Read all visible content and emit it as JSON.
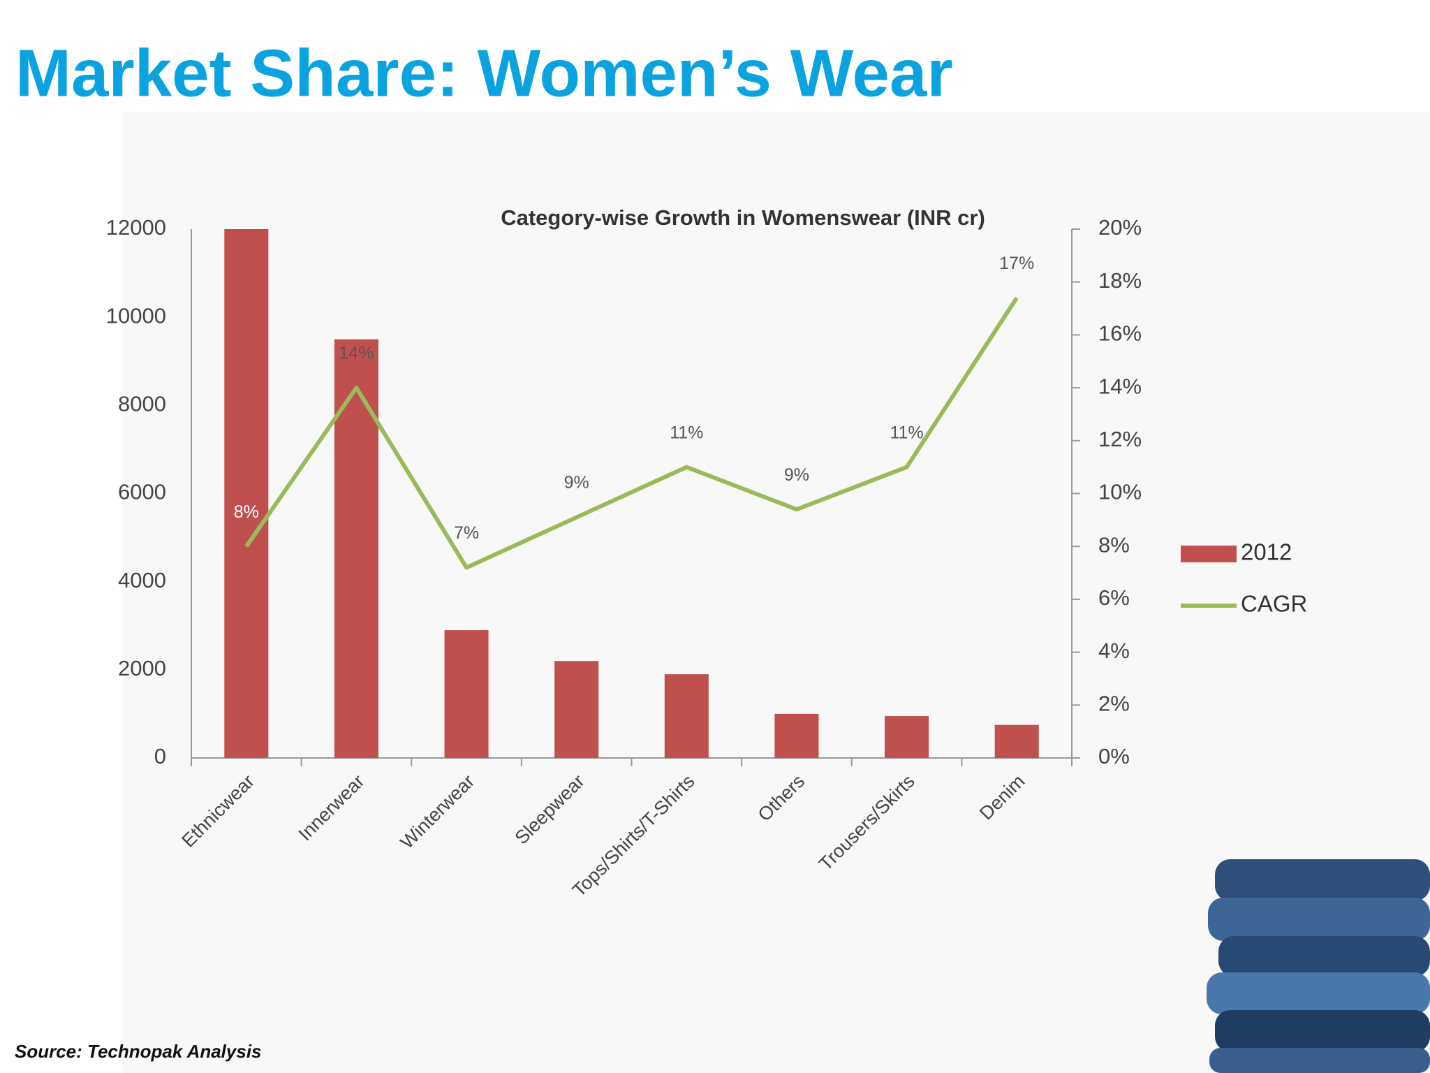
{
  "page_title": "Market Share: Women’s Wear",
  "source": "Source: Technopak Analysis",
  "chart_data": {
    "type": "combo",
    "title": "Category-wise Growth in Womenswear (INR cr)",
    "categories": [
      "Ethnicwear",
      "Innerwear",
      "Winterwear",
      "Sleepwear",
      "Tops/Shirts/T-Shirts",
      "Others",
      "Trousers/Skirts",
      "Denim"
    ],
    "series": [
      {
        "name": "2012",
        "type": "bar",
        "color": "#c0504d",
        "values": [
          12000,
          9500,
          2900,
          2200,
          1900,
          1000,
          950,
          750
        ]
      },
      {
        "name": "CAGR",
        "type": "line",
        "axis": "y2",
        "color": "#9bbb59",
        "values": [
          8,
          14,
          7.2,
          9.1,
          11,
          9.4,
          11,
          17.4
        ],
        "value_labels": [
          "8%",
          "14%",
          "7%",
          "9%",
          "11%",
          "9%",
          "11%",
          "17%"
        ]
      }
    ],
    "ylim": [
      0,
      12000
    ],
    "yticks": [
      0,
      2000,
      4000,
      6000,
      8000,
      10000,
      12000
    ],
    "y2lim": [
      0,
      20
    ],
    "y2ticks": [
      {
        "value": 0,
        "label": "0%"
      },
      {
        "value": 2,
        "label": "2%"
      },
      {
        "value": 4,
        "label": "4%"
      },
      {
        "value": 6,
        "label": "6%"
      },
      {
        "value": 8,
        "label": "8%"
      },
      {
        "value": 10,
        "label": "10%"
      },
      {
        "value": 12,
        "label": "12%"
      },
      {
        "value": 14,
        "label": "14%"
      },
      {
        "value": 16,
        "label": "16%"
      },
      {
        "value": 18,
        "label": "18%"
      },
      {
        "value": 20,
        "label": "20%"
      }
    ],
    "legend": "right"
  }
}
